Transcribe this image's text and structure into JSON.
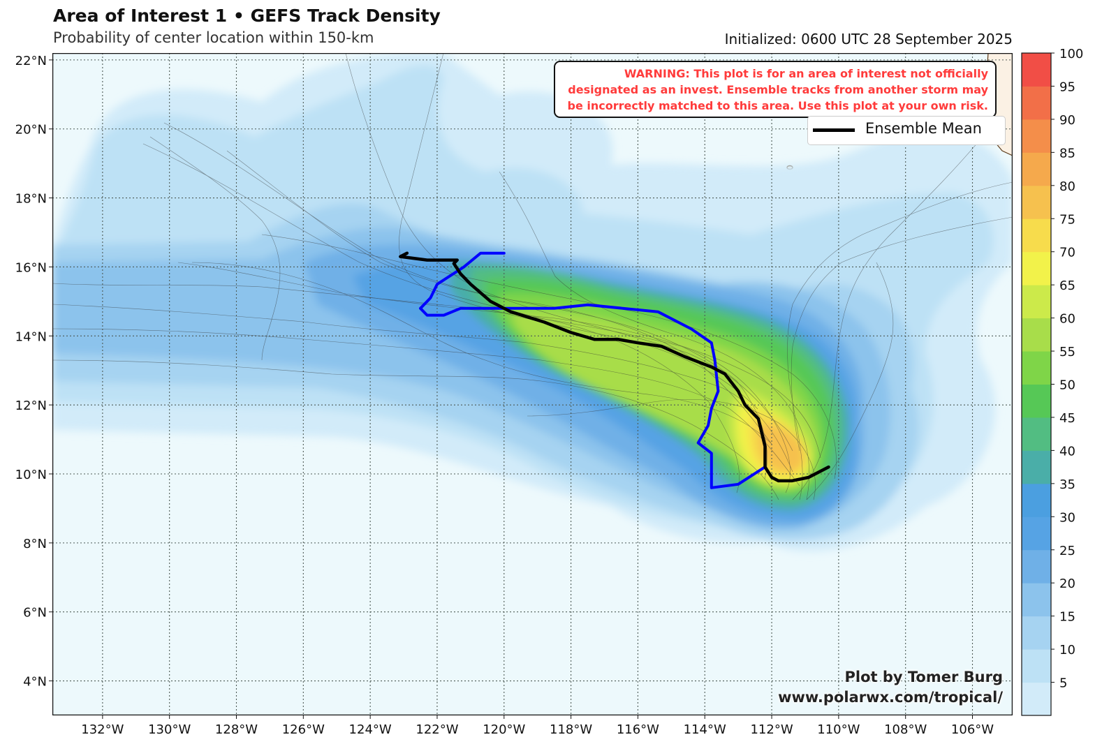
{
  "header": {
    "title": "Area of Interest 1 • GEFS Track Density",
    "subtitle": "Probability of center location within 150-km",
    "initialized": "Initialized: 0600 UTC 28 September 2025"
  },
  "warning": {
    "line1": "WARNING: This plot is for an area of interest not officially",
    "line2": "designated as an invest. Ensemble tracks from another storm may",
    "line3": "be incorrectly matched to this area. Use this plot at your own risk."
  },
  "legend": {
    "label": "Ensemble Mean"
  },
  "credit": {
    "line1": "Plot by Tomer Burg",
    "line2": "www.polarwx.com/tropical/"
  },
  "map": {
    "lon_range": [
      -133.5,
      -104.8
    ],
    "lat_range": [
      3.0,
      22.2
    ],
    "lat_ticks": [
      "22°N",
      "20°N",
      "18°N",
      "16°N",
      "14°N",
      "12°N",
      "10°N",
      "8°N",
      "6°N",
      "4°N"
    ],
    "lat_tick_values": [
      22,
      20,
      18,
      16,
      14,
      12,
      10,
      8,
      6,
      4
    ],
    "lon_ticks": [
      "132°W",
      "130°W",
      "128°W",
      "126°W",
      "124°W",
      "122°W",
      "120°W",
      "118°W",
      "116°W",
      "114°W",
      "112°W",
      "110°W",
      "108°W",
      "106°W"
    ],
    "lon_tick_values": [
      -132,
      -130,
      -128,
      -126,
      -124,
      -122,
      -120,
      -118,
      -116,
      -114,
      -112,
      -110,
      -108,
      -106
    ],
    "ocean_color": "#edf9fc",
    "land_color": "#fbf1e4"
  },
  "colorbar": {
    "ticks": [
      "5",
      "10",
      "15",
      "20",
      "25",
      "30",
      "35",
      "40",
      "45",
      "50",
      "55",
      "60",
      "65",
      "70",
      "75",
      "80",
      "85",
      "90",
      "95",
      "100"
    ],
    "colors": [
      "#d2ebf9",
      "#bde1f5",
      "#a6d3f1",
      "#8cc3ec",
      "#6fb0e7",
      "#56a3e4",
      "#4b9fe0",
      "#4aaea8",
      "#52bd82",
      "#56c856",
      "#7fd548",
      "#a8dd4a",
      "#ccea4a",
      "#f2f24a",
      "#f7dc4c",
      "#f6c14e",
      "#f5a94c",
      "#f48e4a",
      "#f26f48",
      "#f14e46"
    ]
  },
  "ensemble_mean_track": [
    [
      -110.3,
      10.2
    ],
    [
      -110.9,
      9.9
    ],
    [
      -111.4,
      9.8
    ],
    [
      -111.8,
      9.8
    ],
    [
      -112.0,
      9.9
    ],
    [
      -112.2,
      10.2
    ],
    [
      -112.2,
      10.8
    ],
    [
      -112.4,
      11.6
    ],
    [
      -112.8,
      12.0
    ],
    [
      -113.0,
      12.4
    ],
    [
      -113.4,
      12.9
    ],
    [
      -113.8,
      13.1
    ],
    [
      -114.6,
      13.4
    ],
    [
      -115.3,
      13.7
    ],
    [
      -116.0,
      13.8
    ],
    [
      -116.6,
      13.9
    ],
    [
      -117.3,
      13.9
    ],
    [
      -118.0,
      14.1
    ],
    [
      -118.8,
      14.4
    ],
    [
      -119.8,
      14.7
    ],
    [
      -120.4,
      15.0
    ],
    [
      -121.0,
      15.5
    ],
    [
      -121.3,
      15.8
    ],
    [
      -121.5,
      16.1
    ],
    [
      -121.4,
      16.2
    ],
    [
      -122.3,
      16.2
    ],
    [
      -123.1,
      16.3
    ],
    [
      -122.9,
      16.4
    ]
  ],
  "blue_track": [
    [
      -112.2,
      10.2
    ],
    [
      -113.0,
      9.7
    ],
    [
      -113.8,
      9.6
    ],
    [
      -113.8,
      10.6
    ],
    [
      -114.2,
      10.9
    ],
    [
      -113.9,
      11.4
    ],
    [
      -113.8,
      11.9
    ],
    [
      -113.6,
      12.4
    ],
    [
      -113.7,
      13.3
    ],
    [
      -113.8,
      13.8
    ],
    [
      -114.4,
      14.2
    ],
    [
      -115.4,
      14.7
    ],
    [
      -117.5,
      14.9
    ],
    [
      -118.5,
      14.8
    ],
    [
      -120.0,
      14.8
    ],
    [
      -121.3,
      14.8
    ],
    [
      -121.8,
      14.6
    ],
    [
      -122.3,
      14.6
    ],
    [
      -122.5,
      14.8
    ],
    [
      -122.2,
      15.1
    ],
    [
      -122.0,
      15.5
    ],
    [
      -121.2,
      16.0
    ],
    [
      -120.7,
      16.4
    ],
    [
      -120.0,
      16.4
    ]
  ]
}
